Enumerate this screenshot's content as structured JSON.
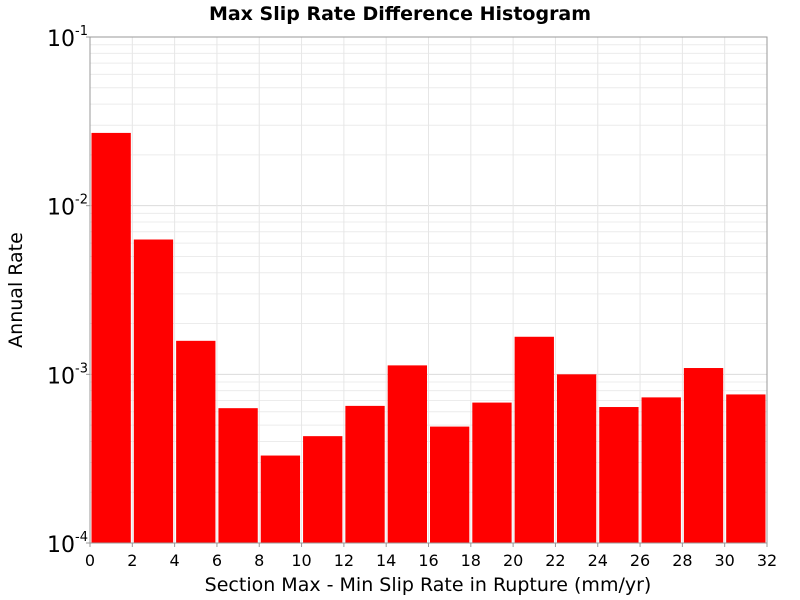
{
  "chart_data": {
    "type": "bar",
    "title": "Max Slip Rate Difference Histogram",
    "xlabel": "Section Max - Min Slip Rate in Rupture (mm/yr)",
    "ylabel": "Annual Rate",
    "xlim": [
      0,
      32
    ],
    "ylim": [
      0.0001,
      0.1
    ],
    "yscale": "log",
    "grid": true,
    "bar_color": "#ff0000",
    "bin_width": 2,
    "x_ticks": [
      "0",
      "2",
      "4",
      "6",
      "8",
      "10",
      "12",
      "14",
      "16",
      "18",
      "20",
      "22",
      "24",
      "26",
      "28",
      "30",
      "32"
    ],
    "y_ticks": [
      {
        "value": 0.0001,
        "base": "10",
        "exp": "-4"
      },
      {
        "value": 0.001,
        "base": "10",
        "exp": "-3"
      },
      {
        "value": 0.01,
        "base": "10",
        "exp": "-2"
      },
      {
        "value": 0.1,
        "base": "10",
        "exp": "-1"
      }
    ],
    "bins": [
      {
        "x": 1,
        "value": 0.027
      },
      {
        "x": 3,
        "value": 0.0063
      },
      {
        "x": 5,
        "value": 0.00158
      },
      {
        "x": 7,
        "value": 0.00063
      },
      {
        "x": 9,
        "value": 0.00033
      },
      {
        "x": 11,
        "value": 0.00043
      },
      {
        "x": 13,
        "value": 0.00065
      },
      {
        "x": 15,
        "value": 0.00113
      },
      {
        "x": 17,
        "value": 0.00049
      },
      {
        "x": 19,
        "value": 0.00068
      },
      {
        "x": 21,
        "value": 0.00167
      },
      {
        "x": 23,
        "value": 0.001
      },
      {
        "x": 25,
        "value": 0.00064
      },
      {
        "x": 27,
        "value": 0.00073
      },
      {
        "x": 29,
        "value": 0.00109
      },
      {
        "x": 31,
        "value": 0.00076
      }
    ]
  }
}
